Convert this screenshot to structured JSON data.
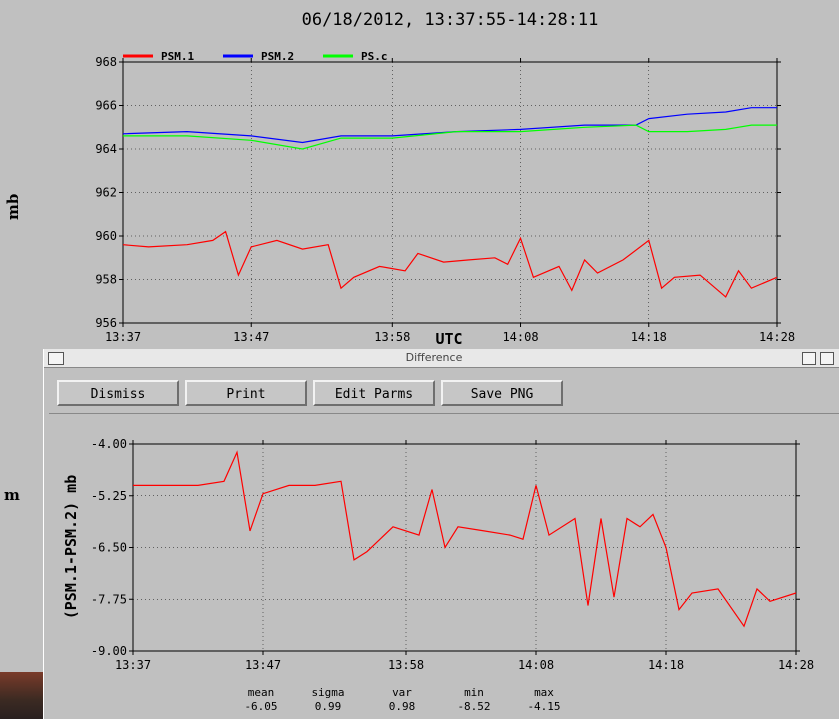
{
  "page": {
    "title": "06/18/2012, 13:37:55-14:28:11",
    "main_ylabel": "mb",
    "side_label": "m"
  },
  "diff_window": {
    "title": "Difference",
    "buttons": [
      "Dismiss",
      "Print",
      "Edit Parms",
      "Save PNG"
    ],
    "ylabel": "(PSM.1-PSM.2) mb"
  },
  "stats": [
    {
      "label": "mean",
      "value": "-6.05"
    },
    {
      "label": "sigma",
      "value": "0.99"
    },
    {
      "label": "var",
      "value": "0.98"
    },
    {
      "label": "min",
      "value": "-8.52"
    },
    {
      "label": "max",
      "value": "-4.15"
    }
  ],
  "chart_data": [
    {
      "type": "line",
      "ylabel": "mb",
      "xlabel": "UTC",
      "x_ticks": [
        "13:37",
        "13:47",
        "13:58",
        "14:08",
        "14:18",
        "14:28"
      ],
      "ylim": [
        956,
        968
      ],
      "y_ticks": [
        "956",
        "958",
        "960",
        "962",
        "964",
        "966",
        "968"
      ],
      "legend_position": "top-left outside",
      "series": [
        {
          "name": "PSM.1",
          "color": "#ff0000",
          "x": [
            "13:37",
            "13:39",
            "13:42",
            "13:44",
            "13:45",
            "13:46",
            "13:47",
            "13:49",
            "13:51",
            "13:53",
            "13:54",
            "13:55",
            "13:57",
            "13:59",
            "14:00",
            "14:02",
            "14:04",
            "14:06",
            "14:07",
            "14:08",
            "14:09",
            "14:11",
            "14:12",
            "14:13",
            "14:14",
            "14:16",
            "14:18",
            "14:19",
            "14:20",
            "14:22",
            "14:24",
            "14:25",
            "14:26",
            "14:28"
          ],
          "values": [
            959.6,
            959.5,
            959.6,
            959.8,
            960.2,
            958.2,
            959.5,
            959.8,
            959.4,
            959.6,
            957.6,
            958.1,
            958.6,
            958.4,
            959.2,
            958.8,
            958.9,
            959.0,
            958.7,
            959.9,
            958.1,
            958.6,
            957.5,
            958.9,
            958.3,
            958.9,
            959.8,
            957.6,
            958.1,
            958.2,
            957.2,
            958.4,
            957.6,
            958.1
          ]
        },
        {
          "name": "PSM.2",
          "color": "#0000ff",
          "x": [
            "13:37",
            "13:42",
            "13:47",
            "13:51",
            "13:54",
            "13:58",
            "14:03",
            "14:08",
            "14:13",
            "14:17",
            "14:18",
            "14:21",
            "14:24",
            "14:26",
            "14:28"
          ],
          "values": [
            964.7,
            964.8,
            964.6,
            964.3,
            964.6,
            964.6,
            964.8,
            964.9,
            965.1,
            965.1,
            965.4,
            965.6,
            965.7,
            965.9,
            965.9
          ]
        },
        {
          "name": "PS.c",
          "color": "#00ff00",
          "x": [
            "13:37",
            "13:42",
            "13:47",
            "13:51",
            "13:54",
            "13:58",
            "14:03",
            "14:08",
            "14:13",
            "14:17",
            "14:18",
            "14:21",
            "14:24",
            "14:26",
            "14:28"
          ],
          "values": [
            964.6,
            964.6,
            964.4,
            964.0,
            964.5,
            964.5,
            964.8,
            964.8,
            965.0,
            965.1,
            964.8,
            964.8,
            964.9,
            965.1,
            965.1
          ]
        }
      ]
    },
    {
      "type": "line",
      "ylabel": "(PSM.1-PSM.2) mb",
      "x_ticks": [
        "13:37",
        "13:47",
        "13:58",
        "14:08",
        "14:18",
        "14:28"
      ],
      "ylim": [
        -9.0,
        -4.0
      ],
      "y_ticks": [
        "-4.00",
        "-5.25",
        "-6.50",
        "-7.75",
        "-9.00"
      ],
      "series": [
        {
          "name": "PSM.1-PSM.2",
          "color": "#ff0000",
          "x": [
            "13:37",
            "13:39",
            "13:42",
            "13:44",
            "13:45",
            "13:46",
            "13:47",
            "13:49",
            "13:51",
            "13:53",
            "13:54",
            "13:55",
            "13:57",
            "13:59",
            "14:00",
            "14:01",
            "14:02",
            "14:04",
            "14:06",
            "14:07",
            "14:08",
            "14:09",
            "14:11",
            "14:12",
            "14:13",
            "14:14",
            "14:15",
            "14:16",
            "14:17",
            "14:18",
            "14:19",
            "14:20",
            "14:22",
            "14:24",
            "14:25",
            "14:26",
            "14:28"
          ],
          "values": [
            -5.0,
            -5.0,
            -5.0,
            -4.9,
            -4.2,
            -6.1,
            -5.2,
            -5.0,
            -5.0,
            -4.9,
            -6.8,
            -6.6,
            -6.0,
            -6.2,
            -5.1,
            -6.5,
            -6.0,
            -6.1,
            -6.2,
            -6.3,
            -5.0,
            -6.2,
            -5.8,
            -7.9,
            -5.8,
            -7.7,
            -5.8,
            -6.0,
            -5.7,
            -6.5,
            -8.0,
            -7.6,
            -7.5,
            -8.4,
            -7.5,
            -7.8,
            -7.6
          ]
        }
      ]
    }
  ]
}
